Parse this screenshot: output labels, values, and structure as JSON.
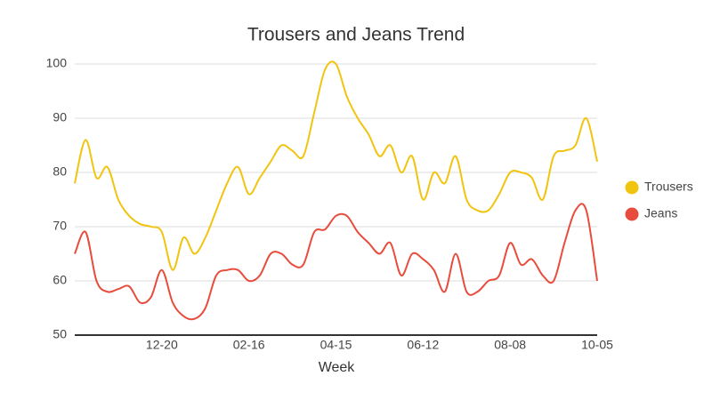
{
  "chart_data": {
    "type": "line",
    "title": "Trousers and Jeans Trend",
    "x_label": "Week",
    "categories": [
      null,
      null,
      null,
      null,
      null,
      null,
      null,
      null,
      "12-20",
      null,
      null,
      null,
      null,
      null,
      null,
      null,
      "02-16",
      null,
      null,
      null,
      null,
      null,
      null,
      null,
      "04-15",
      null,
      null,
      null,
      null,
      null,
      null,
      null,
      "06-12",
      null,
      null,
      null,
      null,
      null,
      null,
      null,
      "08-08",
      null,
      null,
      null,
      null,
      null,
      null,
      null,
      "10-05"
    ],
    "series": [
      {
        "name": "Trousers",
        "color": "#f1c40f",
        "values": [
          78,
          86,
          79,
          81,
          75,
          72,
          70.5,
          70,
          69,
          62,
          68,
          65,
          68,
          73,
          78,
          81,
          76,
          79,
          82,
          85,
          84,
          83,
          91,
          99,
          100,
          94,
          90,
          87,
          83,
          85,
          80,
          83,
          75,
          80,
          78,
          83,
          75,
          73,
          73,
          76,
          80,
          80,
          79,
          75,
          83,
          84,
          85,
          90,
          82
        ]
      },
      {
        "name": "Jeans",
        "color": "#e74c3c",
        "values": [
          65,
          69,
          60,
          58,
          58.5,
          59,
          56,
          57,
          62,
          56,
          53.5,
          53,
          55,
          61,
          62,
          62,
          60,
          61,
          65,
          65,
          63,
          63,
          69,
          69.5,
          72,
          72,
          69,
          67,
          65,
          67,
          61,
          65,
          64,
          62,
          58,
          65,
          58,
          58,
          60,
          61,
          67,
          63,
          64,
          61,
          60,
          67,
          73,
          73,
          60
        ]
      }
    ],
    "ylim": [
      50,
      100
    ],
    "yticks": [
      50,
      60,
      70,
      80,
      90,
      100
    ],
    "grid": true,
    "legend": "right"
  }
}
